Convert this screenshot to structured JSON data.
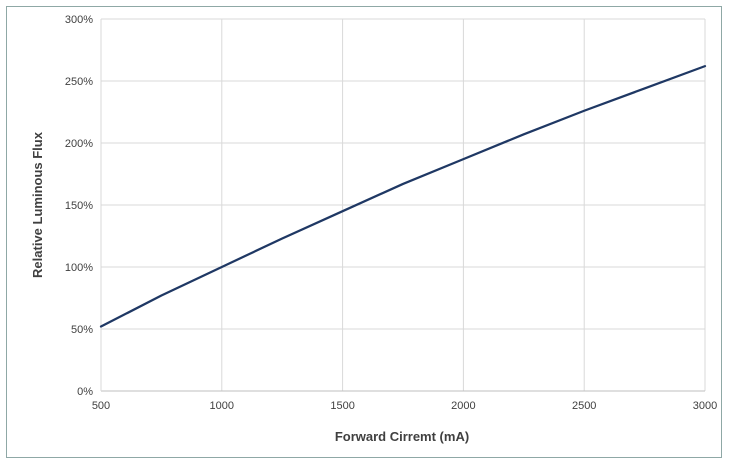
{
  "chart_data": {
    "type": "line",
    "title": "",
    "xlabel": "Forward Cirremt (mA)",
    "ylabel": "Relative Luminous Flux",
    "xlim": [
      500,
      3000
    ],
    "ylim": [
      0,
      300
    ],
    "x_ticks": [
      500,
      1000,
      1500,
      2000,
      2500,
      3000
    ],
    "y_ticks": [
      0,
      50,
      100,
      150,
      200,
      250,
      300
    ],
    "y_tick_labels": [
      "0%",
      "50%",
      "100%",
      "150%",
      "200%",
      "250%",
      "300%"
    ],
    "x_tick_labels": [
      "500",
      "1000",
      "1500",
      "2000",
      "2500",
      "3000"
    ],
    "grid": true,
    "legend": "none",
    "series": [
      {
        "color": "#1f3864",
        "x": [
          500,
          750,
          1000,
          1250,
          1500,
          1750,
          2000,
          2250,
          2500,
          2750,
          3000
        ],
        "y": [
          52,
          77,
          100,
          123,
          145,
          167,
          187,
          207,
          226,
          244,
          262
        ]
      }
    ]
  },
  "colors": {
    "grid": "#d9d9d9",
    "axis": "#bfbfbf",
    "frame": "#8fa8a6",
    "text": "#404040"
  }
}
